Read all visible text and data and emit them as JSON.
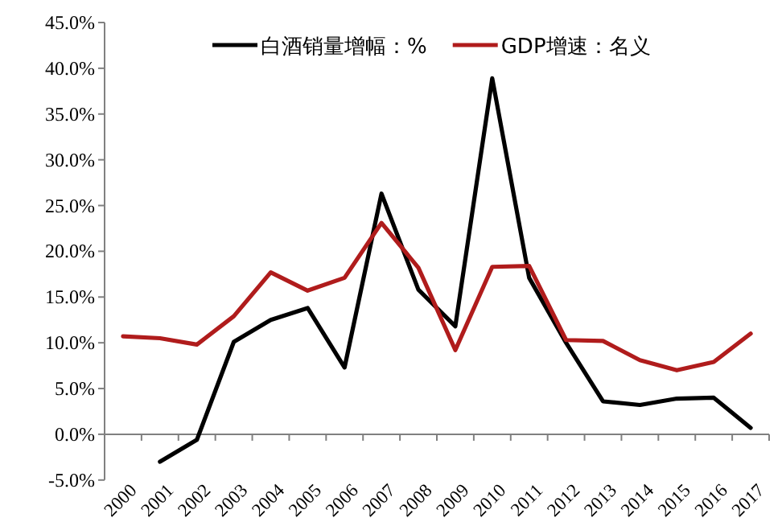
{
  "chart_data": {
    "type": "line",
    "categories": [
      "2000",
      "2001",
      "2002",
      "2003",
      "2004",
      "2005",
      "2006",
      "2007",
      "2008",
      "2009",
      "2010",
      "2011",
      "2012",
      "2013",
      "2014",
      "2015",
      "2016",
      "2017"
    ],
    "series": [
      {
        "name": "白酒销量增幅：%",
        "color": "#000000",
        "values": [
          null,
          -3.0,
          -0.6,
          10.1,
          12.5,
          13.8,
          7.3,
          26.3,
          15.8,
          11.8,
          38.9,
          17.1,
          10.0,
          3.6,
          3.2,
          3.9,
          4.0,
          0.7
        ]
      },
      {
        "name": "GDP增速：名义",
        "color": "#b01c1c",
        "values": [
          10.7,
          10.5,
          9.8,
          12.9,
          17.7,
          15.7,
          17.1,
          23.1,
          18.2,
          9.2,
          18.3,
          18.4,
          10.3,
          10.2,
          8.1,
          7.0,
          7.9,
          11.0
        ]
      }
    ],
    "ylim": [
      -5,
      45
    ],
    "yticks": [
      {
        "value": -5,
        "label": "-5.0%"
      },
      {
        "value": 0,
        "label": "0.0%"
      },
      {
        "value": 5,
        "label": "5.0%"
      },
      {
        "value": 10,
        "label": "10.0%"
      },
      {
        "value": 15,
        "label": "15.0%"
      },
      {
        "value": 20,
        "label": "20.0%"
      },
      {
        "value": 25,
        "label": "25.0%"
      },
      {
        "value": 30,
        "label": "30.0%"
      },
      {
        "value": 35,
        "label": "35.0%"
      },
      {
        "value": 40,
        "label": "40.0%"
      },
      {
        "value": 45,
        "label": "45.0%"
      }
    ],
    "legend": "top",
    "grid": false,
    "marker": "none",
    "line_style": "solid"
  }
}
